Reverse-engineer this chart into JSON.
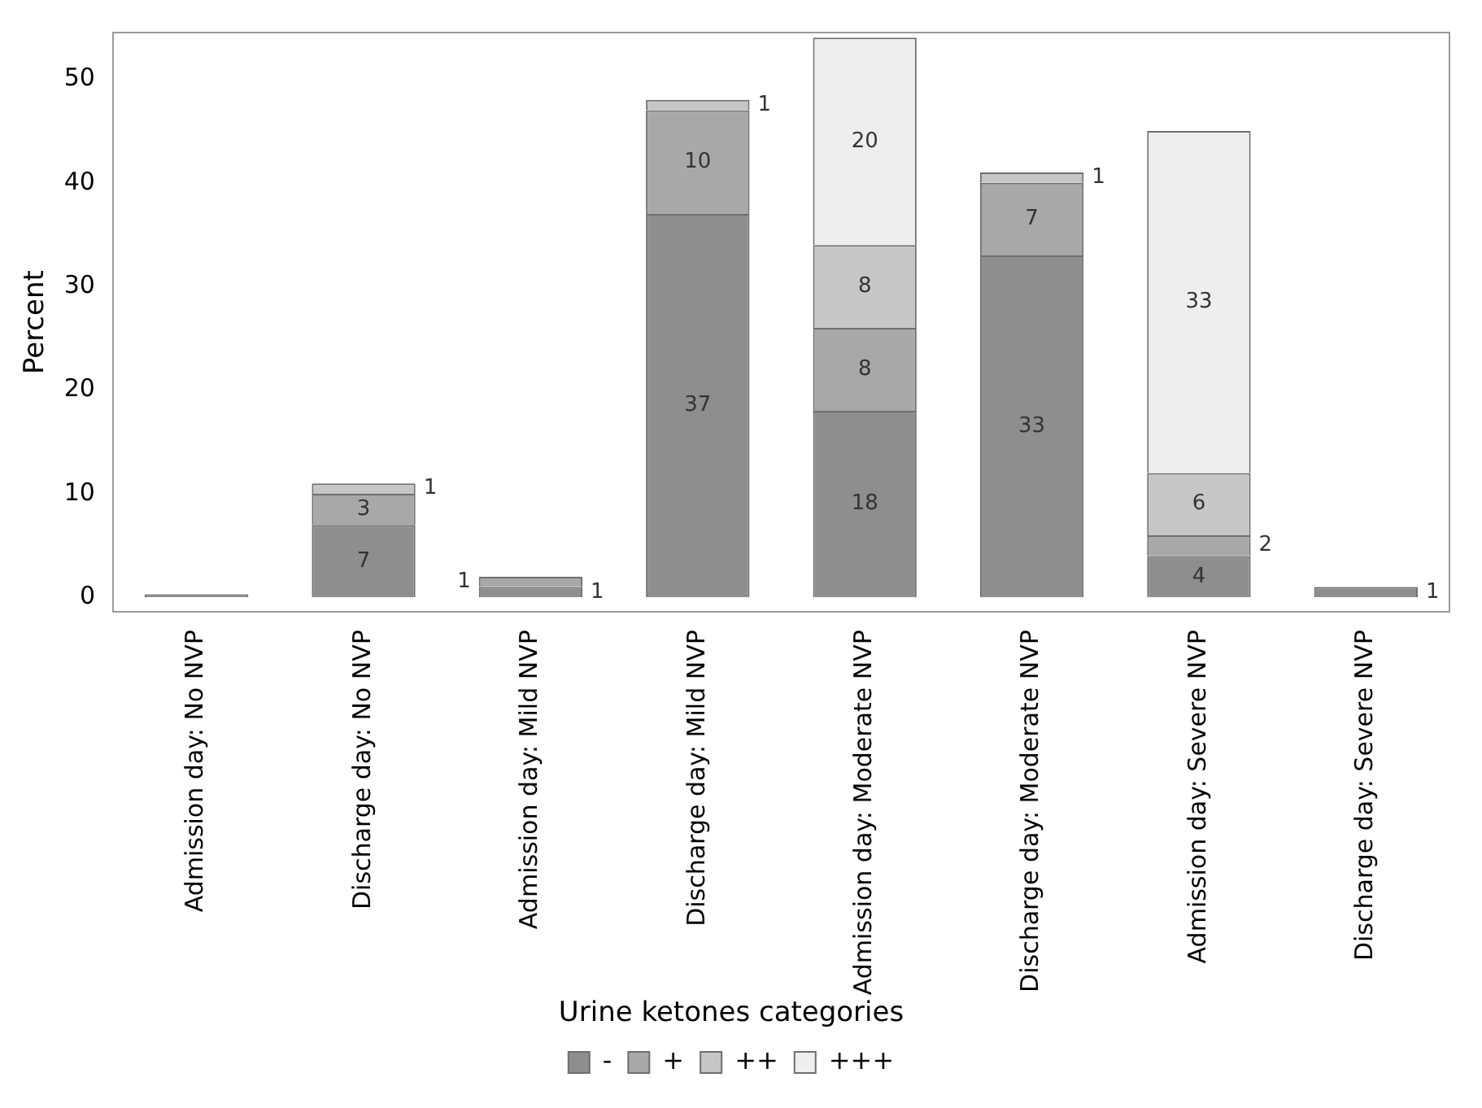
{
  "chart_data": {
    "type": "bar",
    "stacked": true,
    "ylabel": "Percent",
    "legend_title": "Urine ketones categories",
    "legend": "bottom",
    "grid": false,
    "categories": [
      "Admission day: No NVP",
      "Discharge day: No NVP",
      "Admission day: Mild NVP",
      "Discharge day: Mild NVP",
      "Admission day: Moderate NVP",
      "Discharge day: Moderate NVP",
      "Admission day: Severe NVP",
      "Discharge day: Severe NVP"
    ],
    "ylim": [
      -1.4,
      54.5
    ],
    "yticks": [
      0,
      10,
      20,
      30,
      40,
      50
    ],
    "series": [
      {
        "name": "-",
        "color": "#8e8e8e",
        "values": [
          0.3,
          7,
          1,
          37,
          18,
          33,
          4,
          1
        ],
        "value_labels": [
          null,
          "7",
          "1",
          "37",
          "18",
          "33",
          "4",
          "1"
        ]
      },
      {
        "name": "+",
        "color": "#a8a8a8",
        "values": [
          0,
          3,
          1,
          10,
          8,
          7,
          2,
          0
        ],
        "value_labels": [
          null,
          "3",
          "1",
          "10",
          "8",
          "7",
          "2",
          null
        ]
      },
      {
        "name": "++",
        "color": "#c6c6c6",
        "values": [
          0,
          1,
          0,
          1,
          8,
          1,
          6,
          0
        ],
        "value_labels": [
          null,
          "1",
          null,
          "1",
          "8",
          "1",
          "6",
          null
        ]
      },
      {
        "name": "+++",
        "color": "#eeeeee",
        "values": [
          0,
          0,
          0,
          0,
          20,
          0,
          33,
          0
        ],
        "value_labels": [
          null,
          null,
          null,
          null,
          "20",
          null,
          "33",
          null
        ]
      }
    ]
  }
}
